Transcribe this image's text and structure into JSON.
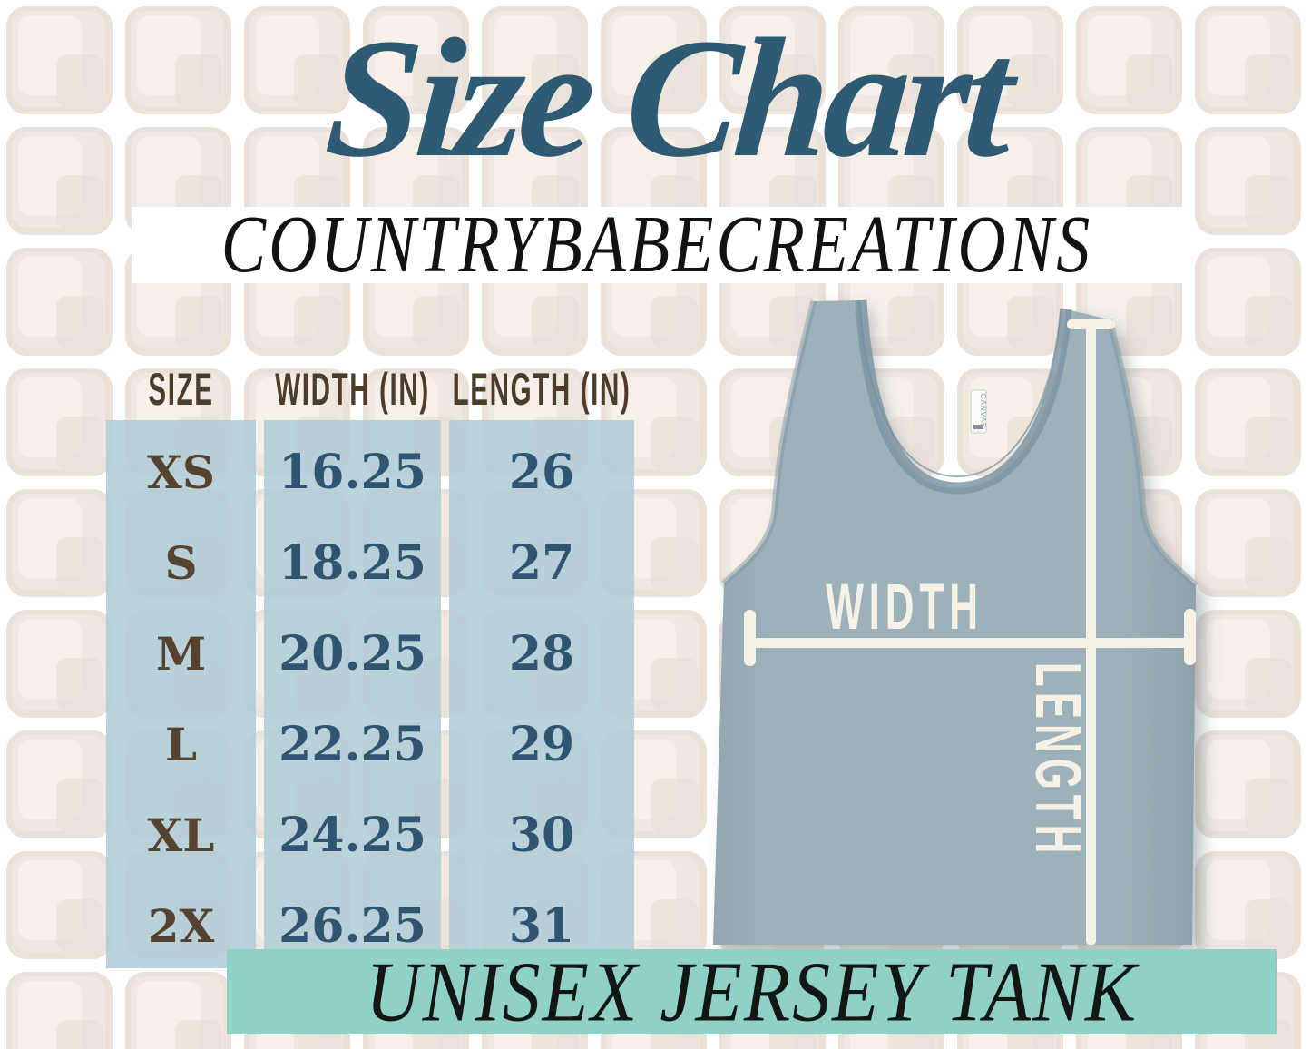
{
  "title": "Size Chart",
  "brand_banner": {
    "text": "COUNTRYBABECREATIONS"
  },
  "product_banner": {
    "text": "UNISEX JERSEY TANK"
  },
  "size_table": {
    "headers": [
      "SIZE",
      "WIDTH (IN)",
      "LENGTH (IN)"
    ],
    "rows": [
      {
        "size": "XS",
        "width": "16.25",
        "length": "26"
      },
      {
        "size": "S",
        "width": "18.25",
        "length": "27"
      },
      {
        "size": "M",
        "width": "20.25",
        "length": "28"
      },
      {
        "size": "L",
        "width": "22.25",
        "length": "29"
      },
      {
        "size": "XL",
        "width": "24.25",
        "length": "30"
      },
      {
        "size": "2X",
        "width": "26.25",
        "length": "31"
      }
    ]
  },
  "tank_diagram": {
    "width_label": "WIDTH",
    "length_label": "LENGTH",
    "tag_label": "CANVAS"
  },
  "colors": {
    "title_blue": "#2e5a74",
    "number_blue": "#2f5570",
    "size_brown": "#55422f",
    "header_brown": "#4c3c2b",
    "column_blue": "rgba(177,204,214,0.88)",
    "teal_banner": "#8fd1c4",
    "tank_fabric": "#8aa2ad",
    "measure_cream": "#f6f1e6",
    "tile_beige": "#e9dfd6"
  },
  "chart_data": {
    "type": "table",
    "title": "Size Chart - Unisex Jersey Tank",
    "columns": [
      "SIZE",
      "WIDTH (IN)",
      "LENGTH (IN)"
    ],
    "rows": [
      [
        "XS",
        16.25,
        26
      ],
      [
        "S",
        18.25,
        27
      ],
      [
        "M",
        20.25,
        28
      ],
      [
        "L",
        22.25,
        29
      ],
      [
        "XL",
        24.25,
        30
      ],
      [
        "2X",
        26.25,
        31
      ]
    ]
  }
}
